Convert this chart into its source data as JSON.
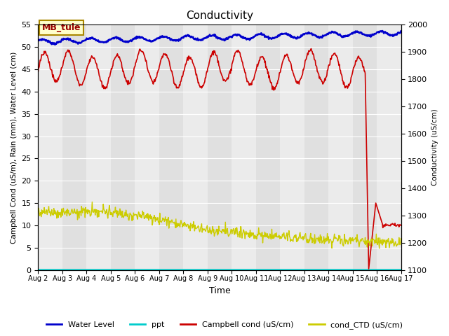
{
  "title": "Conductivity",
  "xlabel": "Time",
  "ylabel_left": "Campbell Cond (uS/m), Rain (mm), Water Level (cm)",
  "ylabel_right": "Conductivity (uS/cm)",
  "ylim_left": [
    0,
    55
  ],
  "ylim_right": [
    1100,
    2000
  ],
  "xlim_days": [
    0,
    15
  ],
  "x_tick_labels": [
    "Aug 2",
    "Aug 3",
    "Aug 4",
    "Aug 5",
    "Aug 6",
    "Aug 7",
    "Aug 8",
    "Aug 9",
    "Aug 10",
    "Aug 11",
    "Aug 12",
    "Aug 13",
    "Aug 14",
    "Aug 15",
    "Aug 16",
    "Aug 17"
  ],
  "annotation_text": "MB_tule",
  "band_color_light": "#ebebeb",
  "band_color_dark": "#e0e0e0",
  "water_level_color": "#0000cc",
  "ppt_color": "#00cccc",
  "campbell_color": "#cc0000",
  "ctd_color": "#cccc00",
  "legend_labels": [
    "Water Level",
    "ppt",
    "Campbell cond (uS/cm)",
    "cond_CTD (uS/cm)"
  ]
}
